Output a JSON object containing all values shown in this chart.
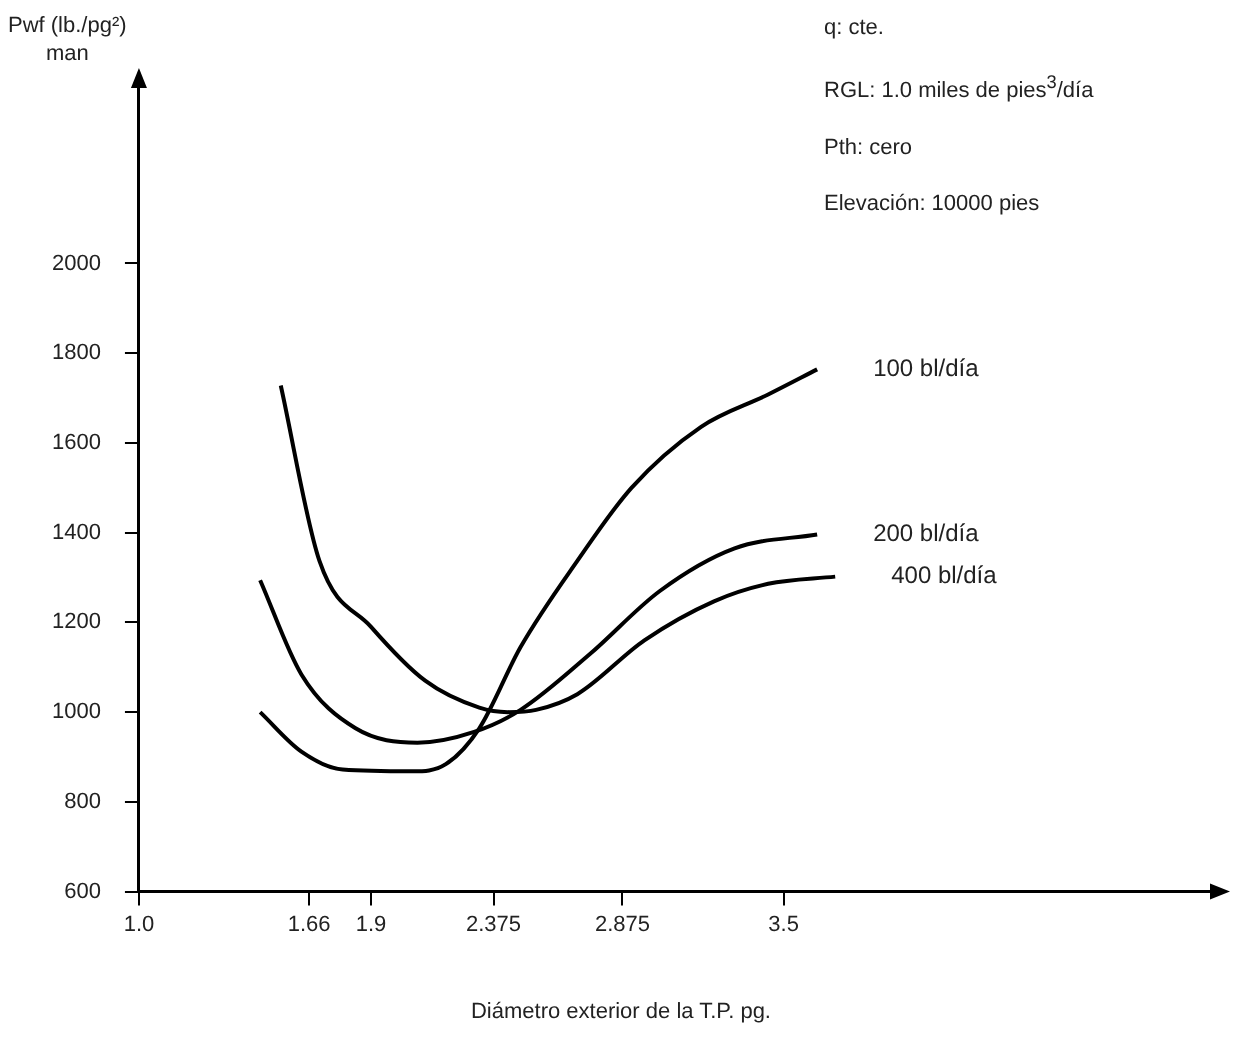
{
  "chart_data": {
    "type": "line",
    "xlabel": "Diámetro exterior de la T.P.  pg.",
    "ylabel": "Pwf (lb./pg²)\nman",
    "annotations": [
      "q: cte.",
      "RGL: 1.0 miles de pies$^{3}$/día",
      "Pth: cero",
      "Elevación: 10000 pies"
    ],
    "xlim": [
      1.0,
      5.2
    ],
    "xticks": [
      {
        "value": 1.0,
        "label": "1.0"
      },
      1.66,
      1.9,
      2.375,
      2.875,
      3.5
    ],
    "ylim": [
      600,
      2400
    ],
    "yticks": [
      600,
      800,
      1000,
      1200,
      1400,
      1600,
      1800,
      2000
    ],
    "grid": false,
    "legend": false,
    "marker": "none",
    "line_style": "solid",
    "series": [
      {
        "name": "100 bl/día",
        "color": "#000000",
        "x": [
          1.47,
          1.63,
          1.79,
          2.06,
          2.19,
          2.32,
          2.48,
          2.7,
          2.91,
          3.18,
          3.44,
          3.63
        ],
        "values": [
          1000,
          912,
          872,
          868,
          884,
          964,
          1145,
          1337,
          1500,
          1636,
          1708,
          1764
        ]
      },
      {
        "name": "200 bl/día",
        "color": "#000000",
        "x": [
          1.47,
          1.63,
          1.84,
          2.08,
          2.3,
          2.48,
          2.75,
          3.02,
          3.31,
          3.63
        ],
        "values": [
          1294,
          1084,
          964,
          932,
          956,
          1005,
          1130,
          1270,
          1365,
          1396
        ]
      },
      {
        "name": "400 bl/día",
        "color": "#000000",
        "x": [
          1.55,
          1.7,
          1.9,
          2.11,
          2.32,
          2.43,
          2.54,
          2.7,
          2.96,
          3.23,
          3.44,
          3.7
        ],
        "values": [
          1728,
          1337,
          1190,
          1070,
          1010,
          1000,
          1005,
          1040,
          1160,
          1247,
          1286,
          1302
        ]
      }
    ]
  }
}
